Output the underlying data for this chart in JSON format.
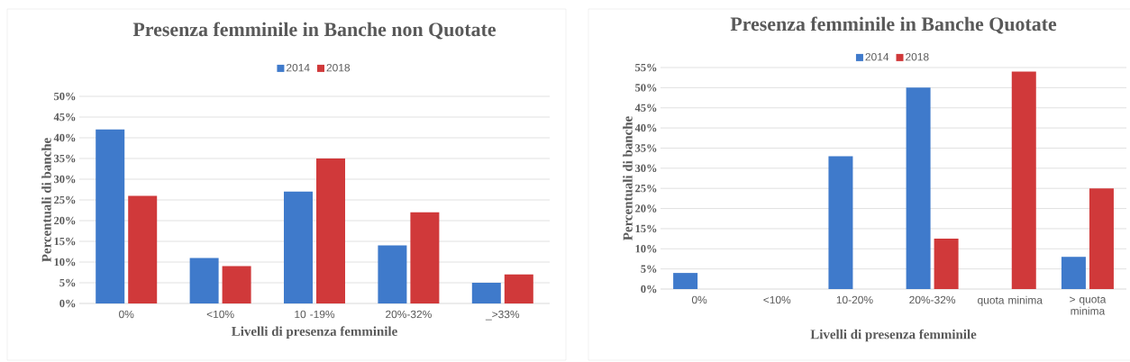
{
  "chart_data": [
    {
      "type": "bar",
      "title": "Presenza femminile in Banche non Quotate",
      "xlabel": "Livelli  di presenza femminile",
      "ylabel": "Percentuali di banche",
      "categories": [
        "0%",
        "<10%",
        "10 -19%",
        "20%-32%",
        "_>33%"
      ],
      "series": [
        {
          "name": "2014",
          "color": "#3f7acb",
          "values": [
            42,
            11,
            27,
            14,
            5
          ]
        },
        {
          "name": "2018",
          "color": "#d0393a",
          "values": [
            26,
            9,
            35,
            22,
            7
          ]
        }
      ],
      "ylim": [
        0,
        50
      ],
      "yticks": [
        {
          "value": 0,
          "label": "0%"
        },
        {
          "value": 5,
          "label": "5%"
        },
        {
          "value": 10,
          "label": "10%"
        },
        {
          "value": 15,
          "label": "15%"
        },
        {
          "value": 20,
          "label": "20%"
        },
        {
          "value": 25,
          "label": "25%"
        },
        {
          "value": 30,
          "label": "30%"
        },
        {
          "value": 35,
          "label": "35%"
        },
        {
          "value": 40,
          "label": "40%"
        },
        {
          "value": 45,
          "label": "45%"
        },
        {
          "value": 50,
          "label": "50%"
        }
      ],
      "grid": "y",
      "legend": "top"
    },
    {
      "type": "bar",
      "title": "Presenza femminile in Banche Quotate",
      "xlabel": "Livelli  di presenza femminile",
      "ylabel": "Percentuali di banche",
      "categories": [
        "0%",
        "<10%",
        "10-20%",
        "20%-32%",
        "quota minima",
        "> quota minima"
      ],
      "series": [
        {
          "name": "2014",
          "color": "#3f7acb",
          "values": [
            4,
            0,
            33,
            50,
            0,
            8
          ]
        },
        {
          "name": "2018",
          "color": "#d0393a",
          "values": [
            0,
            0,
            0,
            12.5,
            54,
            25
          ]
        }
      ],
      "ylim": [
        0,
        55
      ],
      "yticks": [
        {
          "value": 0,
          "label": "0%"
        },
        {
          "value": 5,
          "label": "5%"
        },
        {
          "value": 10,
          "label": "10%"
        },
        {
          "value": 15,
          "label": "15%"
        },
        {
          "value": 20,
          "label": "20%"
        },
        {
          "value": 25,
          "label": "25%"
        },
        {
          "value": 30,
          "label": "30%"
        },
        {
          "value": 35,
          "label": "35%"
        },
        {
          "value": 40,
          "label": "40%"
        },
        {
          "value": 45,
          "label": "45%"
        },
        {
          "value": 50,
          "label": "50%"
        },
        {
          "value": 55,
          "label": "55%"
        }
      ],
      "grid": "y",
      "legend": "top"
    }
  ]
}
